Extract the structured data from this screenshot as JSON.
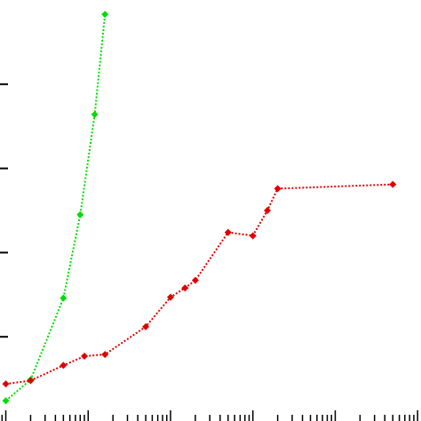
{
  "chart_data": {
    "type": "line",
    "xscale": "log",
    "xlim": [
      0.85,
      110000
    ],
    "ylim": [
      0,
      5
    ],
    "grid": false,
    "legend": "none",
    "series": [
      {
        "color": "#00dd00",
        "marker": "diamond",
        "linestyle": "dotted",
        "points": [
          {
            "x": 1,
            "y": 0.24
          },
          {
            "x": 2,
            "y": 0.49
          },
          {
            "x": 5,
            "y": 1.46
          },
          {
            "x": 8,
            "y": 2.45
          },
          {
            "x": 12,
            "y": 3.64
          },
          {
            "x": 16,
            "y": 4.83
          }
        ]
      },
      {
        "color": "#dd0000",
        "marker": "diamond",
        "linestyle": "dotted",
        "points": [
          {
            "x": 1,
            "y": 0.44
          },
          {
            "x": 2,
            "y": 0.48
          },
          {
            "x": 5,
            "y": 0.66
          },
          {
            "x": 9,
            "y": 0.77
          },
          {
            "x": 16,
            "y": 0.79
          },
          {
            "x": 50,
            "y": 1.12
          },
          {
            "x": 100,
            "y": 1.47
          },
          {
            "x": 150,
            "y": 1.58
          },
          {
            "x": 200,
            "y": 1.67
          },
          {
            "x": 500,
            "y": 2.24
          },
          {
            "x": 1000,
            "y": 2.2
          },
          {
            "x": 1500,
            "y": 2.5
          },
          {
            "x": 2000,
            "y": 2.76
          },
          {
            "x": 50000,
            "y": 2.81
          }
        ]
      }
    ]
  }
}
